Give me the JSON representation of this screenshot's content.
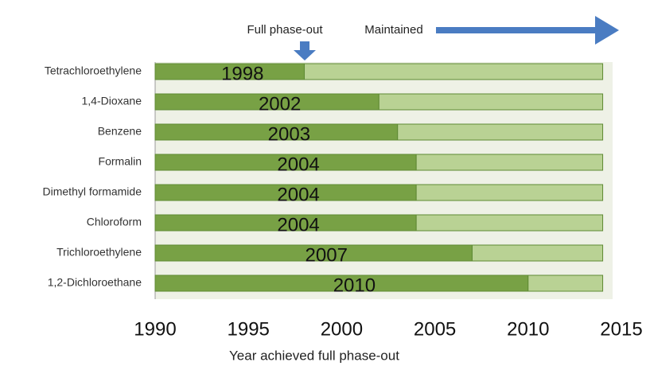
{
  "chart_data": {
    "type": "bar",
    "orientation": "horizontal",
    "x_label": "Year achieved full phase-out",
    "categories": [
      "Tetrachloroethylene",
      "1,4-Dioxane",
      "Benzene",
      "Formalin",
      "Dimethyl formamide",
      "Chloroform",
      "Trichloroethylene",
      "1,2-Dichloroethane"
    ],
    "series": [
      {
        "name": "Full phase-out",
        "color": "#78a145",
        "values": [
          1998,
          2002,
          2003,
          2004,
          2004,
          2004,
          2007,
          2010
        ]
      },
      {
        "name": "Maintained",
        "color": "#b9d294",
        "values": [
          16,
          12,
          11,
          10,
          10,
          10,
          7,
          4
        ]
      }
    ],
    "xlim": [
      1990,
      2015
    ],
    "xticks": [
      1990,
      1995,
      2000,
      2005,
      2010,
      2015
    ]
  }
}
